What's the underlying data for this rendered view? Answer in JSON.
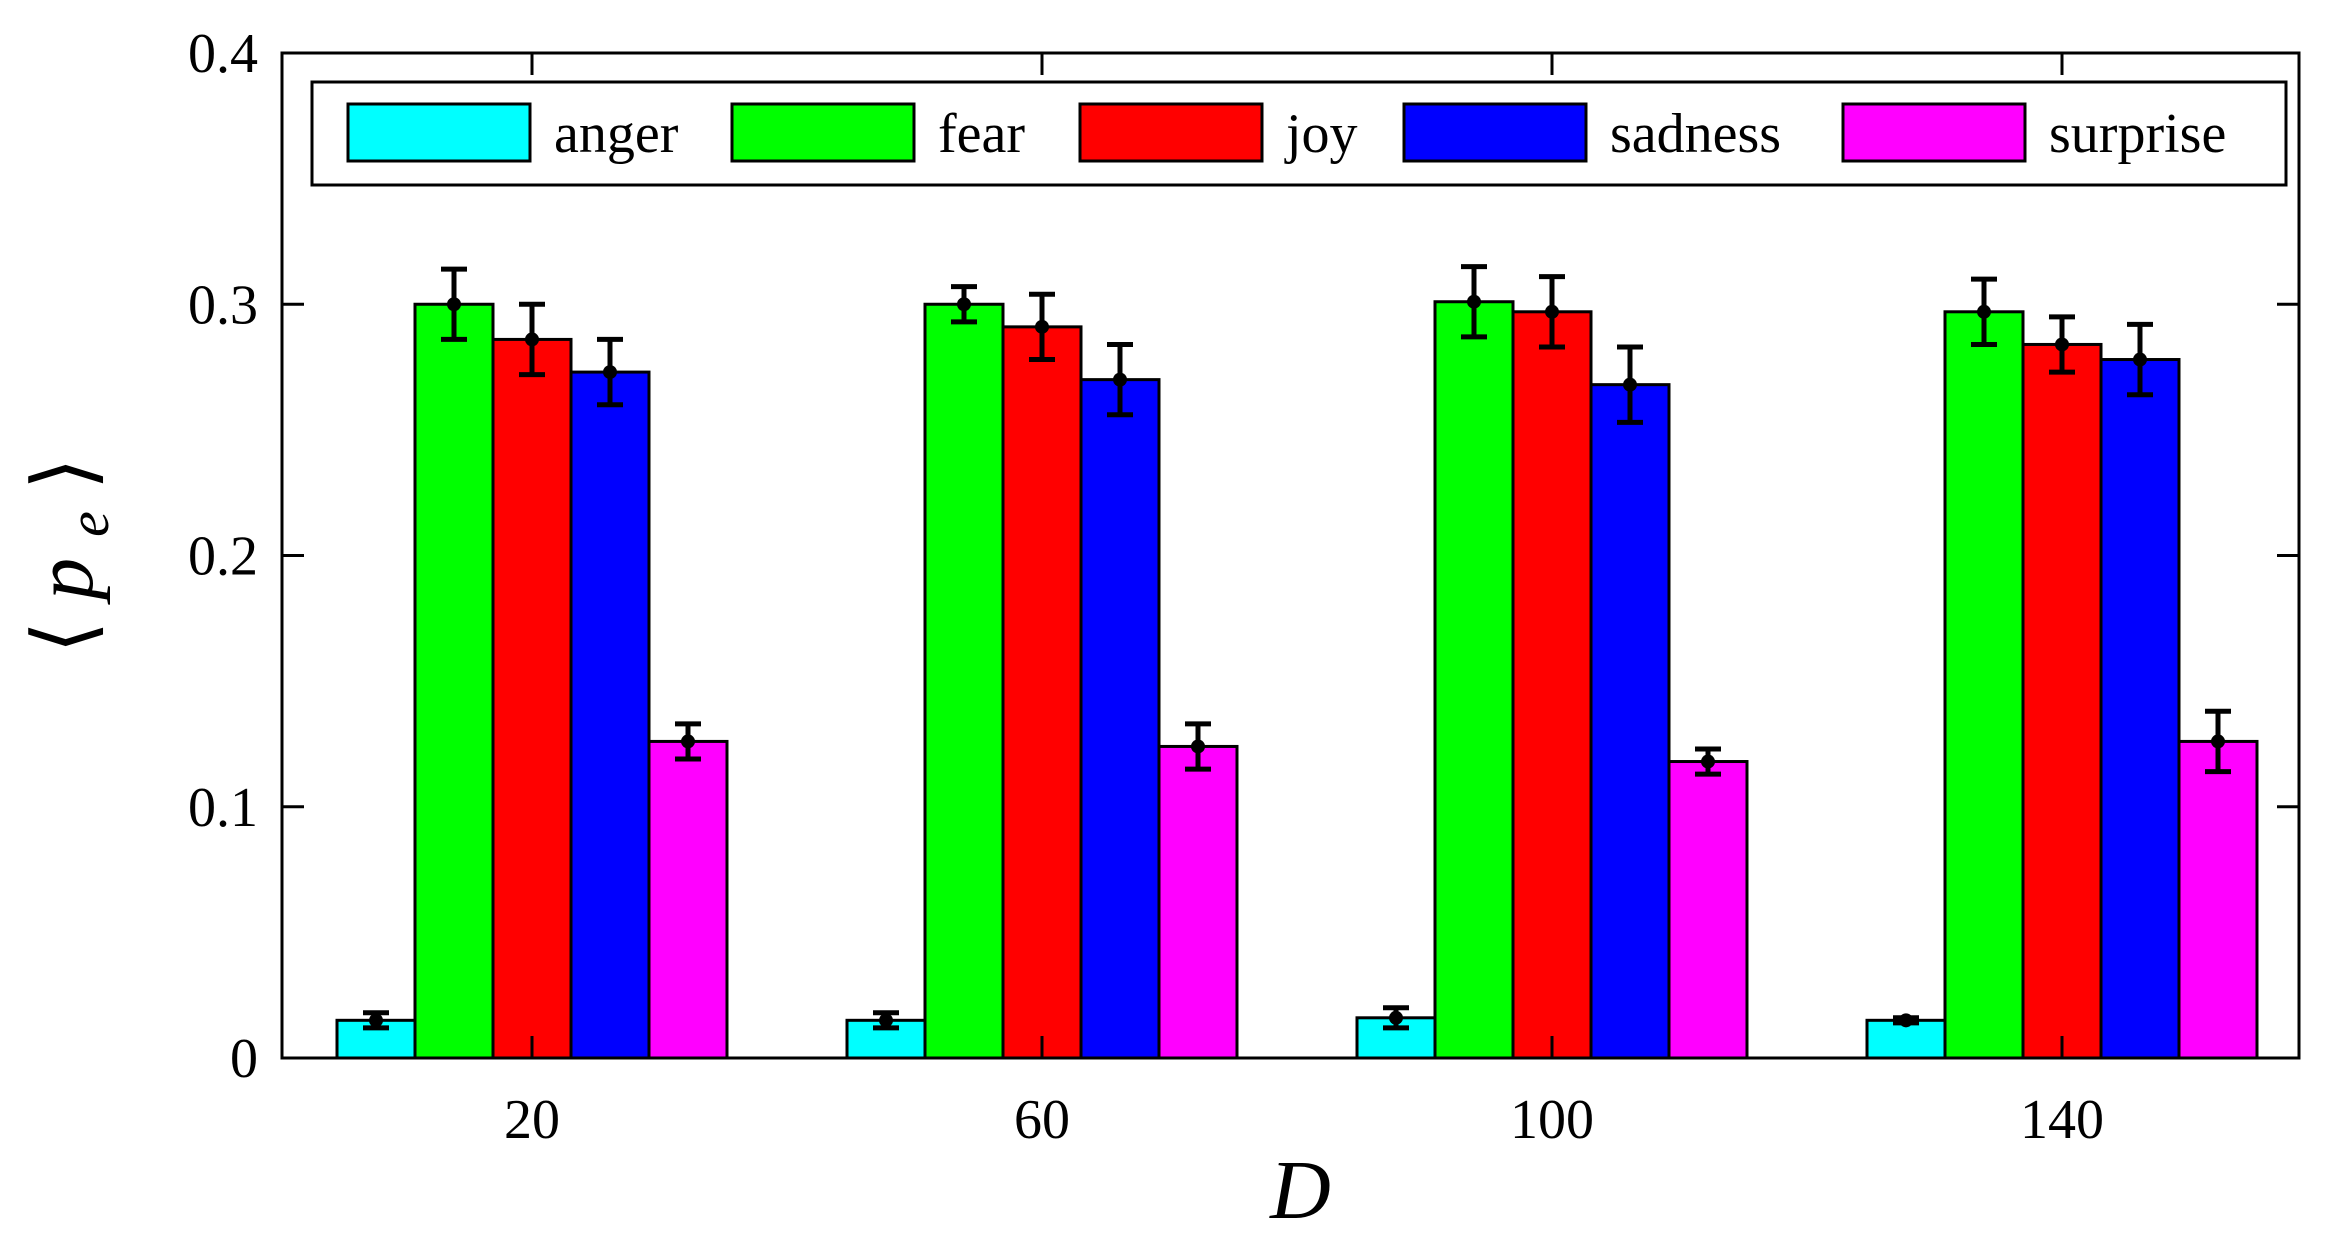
{
  "chart_data": {
    "type": "bar",
    "title": "",
    "xlabel": "D",
    "ylabel": {
      "left_bracket": "⟨",
      "symbol": "p",
      "subscript": "e",
      "right_bracket": "⟩"
    },
    "ylim": [
      0,
      0.4
    ],
    "yticks": [
      "0",
      "0.1",
      "0.2",
      "0.3",
      "0.4"
    ],
    "categories": [
      "20",
      "60",
      "100",
      "140"
    ],
    "grid": false,
    "legend_position": "top",
    "series": [
      {
        "name": "anger",
        "color": "#00FFFF",
        "values": [
          0.015,
          0.015,
          0.016,
          0.015
        ],
        "errors": [
          0.003,
          0.003,
          0.004,
          0.001
        ]
      },
      {
        "name": "fear",
        "color": "#00FF00",
        "values": [
          0.3,
          0.3,
          0.301,
          0.297
        ],
        "errors": [
          0.014,
          0.007,
          0.014,
          0.013
        ]
      },
      {
        "name": "joy",
        "color": "#FF0000",
        "values": [
          0.286,
          0.291,
          0.297,
          0.284
        ],
        "errors": [
          0.014,
          0.013,
          0.014,
          0.011
        ]
      },
      {
        "name": "sadness",
        "color": "#0000FF",
        "values": [
          0.273,
          0.27,
          0.268,
          0.278
        ],
        "errors": [
          0.013,
          0.014,
          0.015,
          0.014
        ]
      },
      {
        "name": "surprise",
        "color": "#FF00FF",
        "values": [
          0.126,
          0.124,
          0.118,
          0.126
        ],
        "errors": [
          0.007,
          0.009,
          0.005,
          0.012
        ]
      }
    ]
  }
}
